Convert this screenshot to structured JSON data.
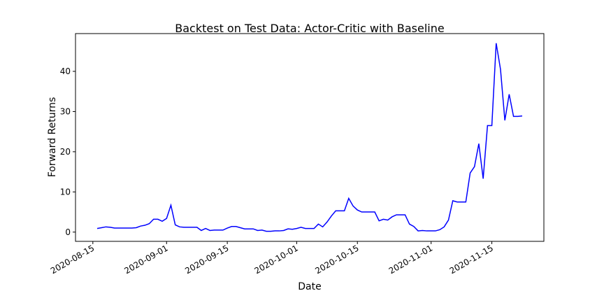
{
  "chart_data": {
    "type": "line",
    "title": "Backtest on Test Data: Actor-Critic with Baseline",
    "x_label": "Date",
    "y_label": "Forward Returns",
    "x": [
      "2020-08-16",
      "2020-08-17",
      "2020-08-18",
      "2020-08-19",
      "2020-08-20",
      "2020-08-21",
      "2020-08-22",
      "2020-08-23",
      "2020-08-24",
      "2020-08-25",
      "2020-08-26",
      "2020-08-27",
      "2020-08-28",
      "2020-08-29",
      "2020-08-30",
      "2020-08-31",
      "2020-09-01",
      "2020-09-02",
      "2020-09-03",
      "2020-09-04",
      "2020-09-05",
      "2020-09-06",
      "2020-09-07",
      "2020-09-08",
      "2020-09-09",
      "2020-09-10",
      "2020-09-11",
      "2020-09-12",
      "2020-09-13",
      "2020-09-14",
      "2020-09-15",
      "2020-09-16",
      "2020-09-17",
      "2020-09-18",
      "2020-09-19",
      "2020-09-20",
      "2020-09-21",
      "2020-09-22",
      "2020-09-23",
      "2020-09-24",
      "2020-09-25",
      "2020-09-26",
      "2020-09-27",
      "2020-09-28",
      "2020-09-29",
      "2020-09-30",
      "2020-10-01",
      "2020-10-02",
      "2020-10-03",
      "2020-10-04",
      "2020-10-05",
      "2020-10-06",
      "2020-10-07",
      "2020-10-08",
      "2020-10-09",
      "2020-10-10",
      "2020-10-11",
      "2020-10-12",
      "2020-10-13",
      "2020-10-14",
      "2020-10-15",
      "2020-10-16",
      "2020-10-17",
      "2020-10-18",
      "2020-10-19",
      "2020-10-20",
      "2020-10-21",
      "2020-10-22",
      "2020-10-23",
      "2020-10-24",
      "2020-10-25",
      "2020-10-26",
      "2020-10-27",
      "2020-10-28",
      "2020-10-29",
      "2020-10-30",
      "2020-10-31",
      "2020-11-01",
      "2020-11-02",
      "2020-11-03",
      "2020-11-04",
      "2020-11-05",
      "2020-11-06",
      "2020-11-07",
      "2020-11-08",
      "2020-11-09",
      "2020-11-10",
      "2020-11-11",
      "2020-11-12",
      "2020-11-13",
      "2020-11-14",
      "2020-11-15",
      "2020-11-16",
      "2020-11-17",
      "2020-11-18",
      "2020-11-19",
      "2020-11-20",
      "2020-11-21",
      "2020-11-22"
    ],
    "series": [
      {
        "name": "Forward Returns",
        "color": "#0000ff",
        "values": [
          0.9,
          1.1,
          1.3,
          1.2,
          1.0,
          1.0,
          1.0,
          1.0,
          1.0,
          1.1,
          1.5,
          1.7,
          2.1,
          3.2,
          3.2,
          2.7,
          3.4,
          6.7,
          1.8,
          1.3,
          1.2,
          1.2,
          1.2,
          1.2,
          0.4,
          0.9,
          0.4,
          0.5,
          0.5,
          0.5,
          1.0,
          1.4,
          1.4,
          1.1,
          0.8,
          0.8,
          0.8,
          0.4,
          0.5,
          0.2,
          0.2,
          0.3,
          0.3,
          0.4,
          0.8,
          0.7,
          0.9,
          1.2,
          0.9,
          0.9,
          0.9,
          2.0,
          1.3,
          2.5,
          4.0,
          5.3,
          5.3,
          5.3,
          8.4,
          6.5,
          5.5,
          5.0,
          5.0,
          5.0,
          5.0,
          2.8,
          3.2,
          3.0,
          3.8,
          4.3,
          4.3,
          4.3,
          2.0,
          1.4,
          0.3,
          0.4,
          0.3,
          0.3,
          0.3,
          0.6,
          1.3,
          3.0,
          7.8,
          7.5,
          7.5,
          7.5,
          14.7,
          16.3,
          22.0,
          13.3,
          26.5,
          26.5,
          47.0,
          40.5,
          27.8,
          34.3,
          28.8,
          28.8,
          28.9
        ]
      }
    ],
    "xlim": [
      "2020-08-11",
      "2020-11-27"
    ],
    "xticks": [
      "2020-08-15",
      "2020-09-01",
      "2020-09-15",
      "2020-10-01",
      "2020-10-15",
      "2020-11-01",
      "2020-11-15"
    ],
    "ylim": [
      -2.3,
      49.4
    ],
    "yticks": [
      0,
      10,
      20,
      30,
      40
    ]
  }
}
